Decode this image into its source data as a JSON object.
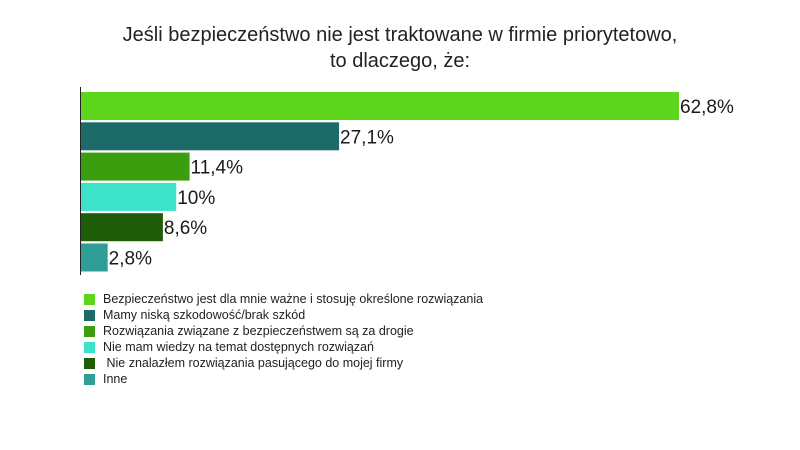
{
  "title_line1": "Jeśli bezpieczeństwo nie jest traktowane w firmie priorytetowo,",
  "title_line2": "to dlaczego, że:",
  "chart_data": {
    "type": "bar",
    "orientation": "horizontal",
    "categories": [
      "Bezpieczeństwo jest dla mnie ważne i stosuję określone rozwiązania",
      "Mamy niską szkodowość/brak szkód",
      "Rozwiązania związane z bezpieczeństwem są za drogie",
      "Nie mam wiedzy na temat dostępnych rozwiązań",
      " Nie znalazłem rozwiązania pasującego do mojej firmy",
      "Inne"
    ],
    "values": [
      62.8,
      27.1,
      11.4,
      10,
      8.6,
      2.8
    ],
    "data_labels": [
      "62,8%",
      "27,1%",
      "11,4%",
      "10%",
      "8,6%",
      "2,8%"
    ],
    "colors": [
      "#5ed51d",
      "#1c6b69",
      "#3a9e0e",
      "#3de3c9",
      "#1e5c0a",
      "#2f9e97"
    ],
    "xlim": [
      0,
      62.8
    ],
    "grid": false,
    "legend_position": "bottom-left"
  }
}
